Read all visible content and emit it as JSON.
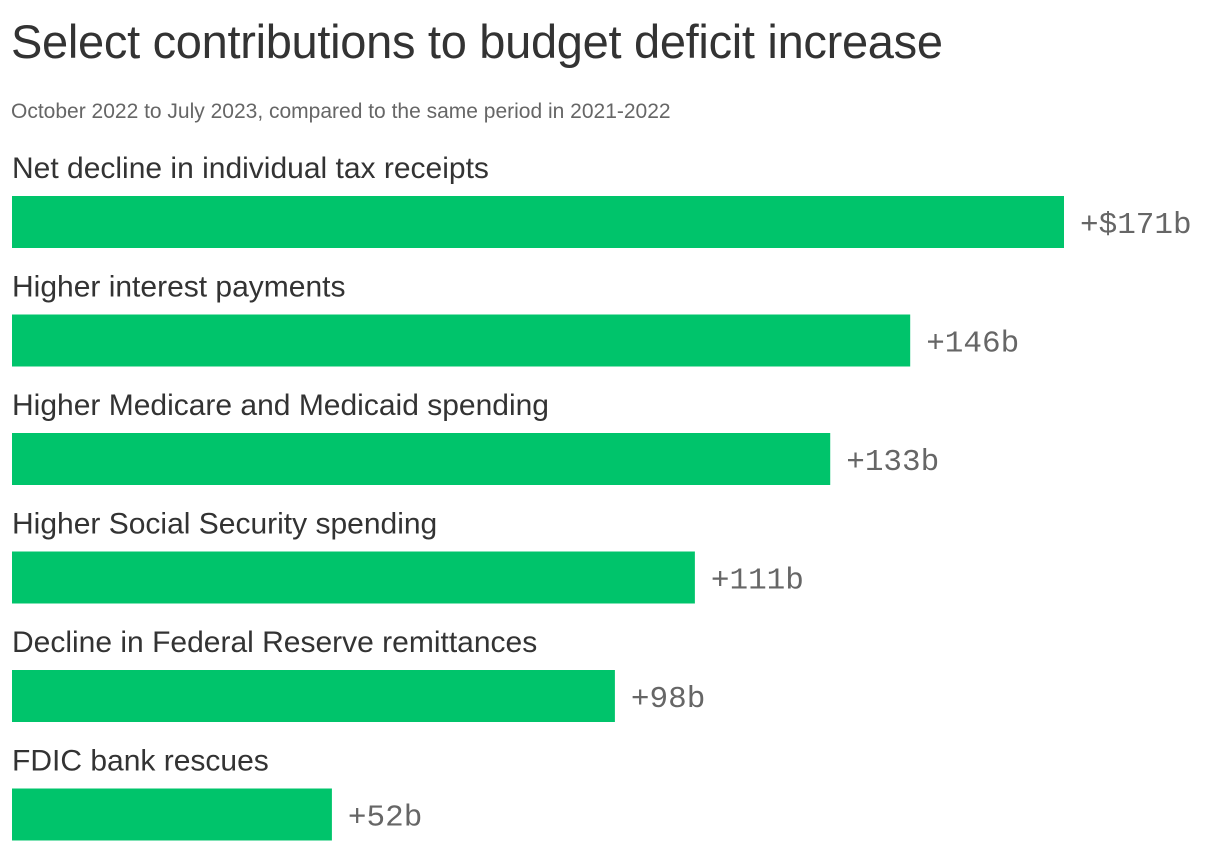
{
  "chart_data": {
    "type": "bar",
    "orientation": "horizontal",
    "title": "Select contributions to budget deficit increase",
    "subtitle": "October 2022 to July 2023, compared to the same period in 2021-2022",
    "xlabel": "",
    "ylabel": "",
    "grid": false,
    "legend": "none",
    "unit": "billions of dollars",
    "categories": [
      "Net decline in individual tax receipts",
      "Higher interest payments",
      "Higher Medicare and Medicaid spending",
      "Higher Social Security spending",
      "Decline in Federal Reserve remittances",
      "FDIC bank rescues"
    ],
    "values": [
      171,
      146,
      133,
      111,
      98,
      52
    ],
    "value_labels": [
      "+$171b",
      "+146b",
      "+133b",
      "+111b",
      "+98b",
      "+52b"
    ],
    "xlim": [
      0,
      171
    ],
    "bar_color": "#00c46b"
  }
}
